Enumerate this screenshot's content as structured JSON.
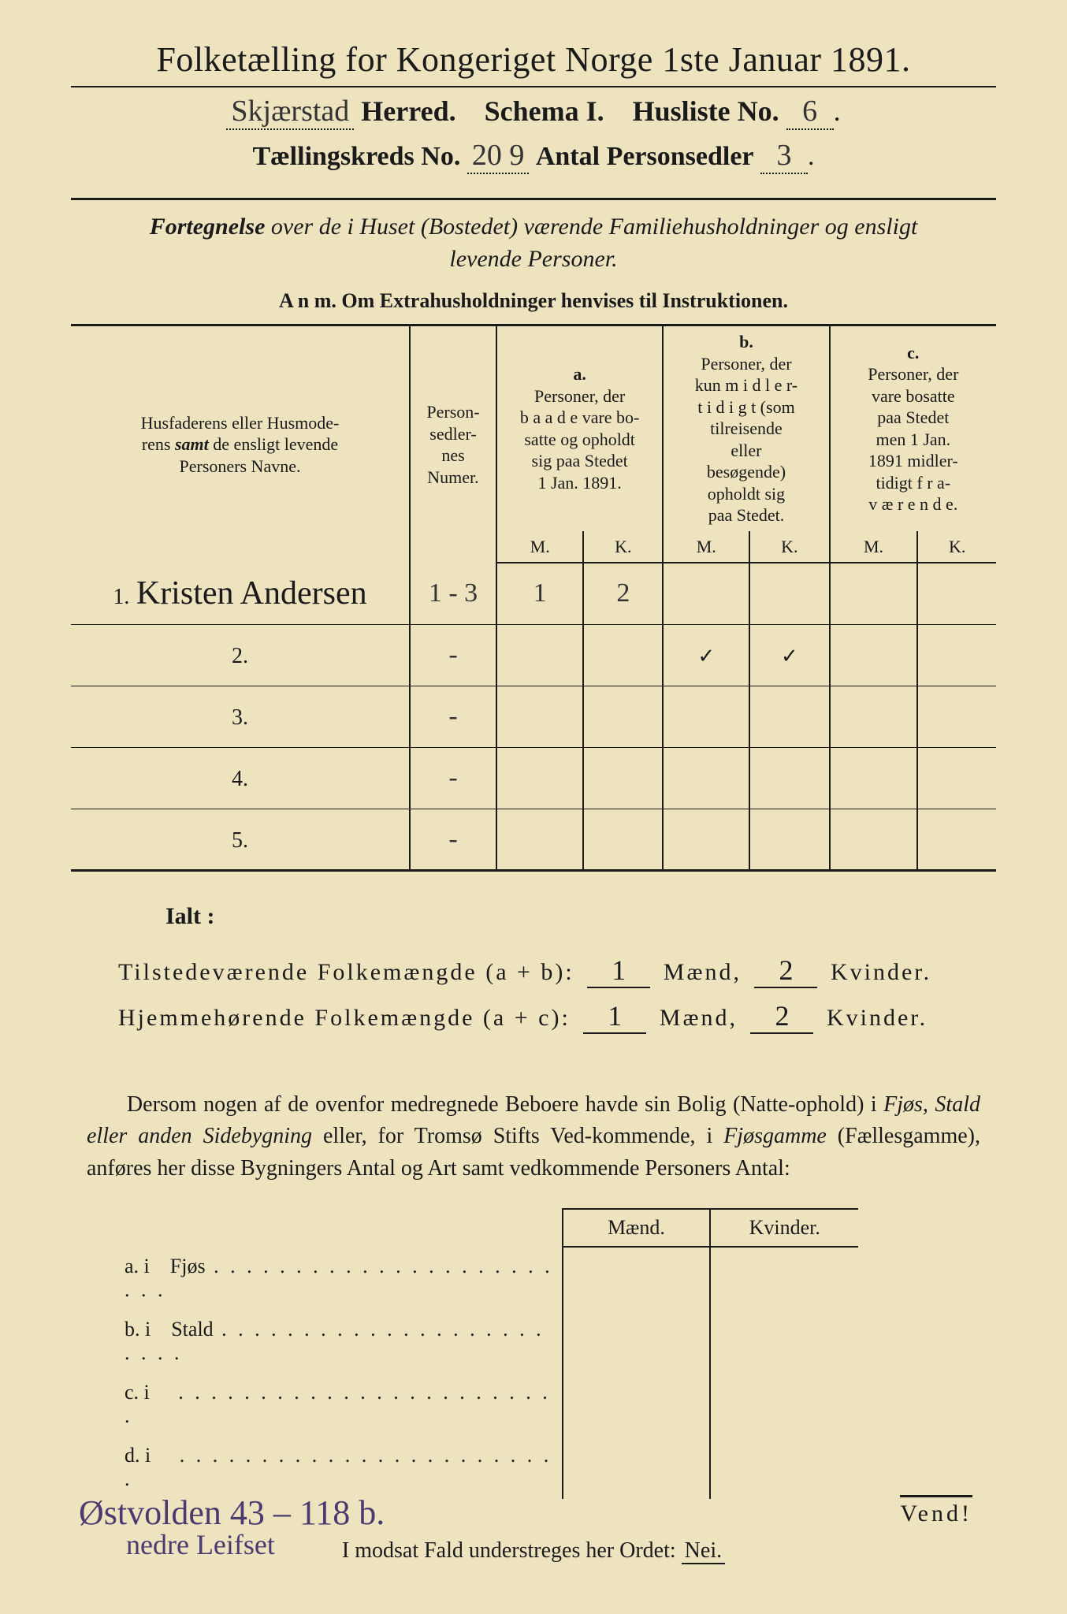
{
  "header": {
    "title": "Folketælling for Kongeriget Norge 1ste Januar 1891.",
    "herred_value": "Skjærstad",
    "herred_label": "Herred.",
    "schema_label": "Schema I.",
    "husliste_label": "Husliste No.",
    "husliste_value": "6",
    "kreds_label": "Tællingskreds No.",
    "kreds_value": "20 9",
    "antal_label": "Antal Personsedler",
    "antal_value": "3"
  },
  "subheader": {
    "line": "Fortegnelse over de i Huset (Bostedet) værende Familiehusholdninger og ensligt levende Personer.",
    "anm": "A n m.   Om Extrahusholdninger henvises til Instruktionen."
  },
  "table": {
    "col_names": "Husfaderens eller Husmoderens samt de ensligt levende Personers Navne.",
    "col_numer": "Person-sedler-nes Numer.",
    "col_a_head": "a.",
    "col_a": "Personer, der b a a d e vare bo-satte og opholdt sig paa Stedet 1 Jan. 1891.",
    "col_b_head": "b.",
    "col_b": "Personer, der kun m i d l e r-t i d i g t (som tilreisende eller besøgende) opholdt sig paa Stedet.",
    "col_c_head": "c.",
    "col_c": "Personer, der vare bosatte paa Stedet men 1 Jan. 1891 midler-tidigt f r a-v æ r e n d e.",
    "mk_m": "M.",
    "mk_k": "K.",
    "rows": [
      {
        "num": "1.",
        "name": "Kristen Andersen",
        "numer": "1 - 3",
        "a_m": "1",
        "a_k": "2",
        "b_m": "",
        "b_k": "",
        "c_m": "",
        "c_k": ""
      },
      {
        "num": "2.",
        "name": "",
        "numer": "-",
        "a_m": "",
        "a_k": "",
        "b_m": "✓",
        "b_k": "✓",
        "c_m": "",
        "c_k": ""
      },
      {
        "num": "3.",
        "name": "",
        "numer": "-",
        "a_m": "",
        "a_k": "",
        "b_m": "",
        "b_k": "",
        "c_m": "",
        "c_k": ""
      },
      {
        "num": "4.",
        "name": "",
        "numer": "-",
        "a_m": "",
        "a_k": "",
        "b_m": "",
        "b_k": "",
        "c_m": "",
        "c_k": ""
      },
      {
        "num": "5.",
        "name": "",
        "numer": "-",
        "a_m": "",
        "a_k": "",
        "b_m": "",
        "b_k": "",
        "c_m": "",
        "c_k": ""
      }
    ]
  },
  "totals": {
    "ialt": "Ialt :",
    "tilstede_label": "Tilstedeværende Folkemængde (a + b):",
    "tilstede_m": "1",
    "tilstede_k": "2",
    "hjemme_label": "Hjemmehørende Folkemængde (a + c):",
    "hjemme_m": "1",
    "hjemme_k": "2",
    "maend": "Mænd,",
    "kvinder": "Kvinder."
  },
  "para": "Dersom nogen af de ovenfor medregnede Beboere havde sin Bolig (Natte-ophold) i Fjøs, Stald eller anden Sidebygning eller, for Tromsø Stifts Ved-kommende, i Fjøsgamme (Fællesgamme), anføres her disse Bygningers Antal og Art samt vedkommende Personers Antal:",
  "fjøs": {
    "maend": "Mænd.",
    "kvinder": "Kvinder.",
    "rows": [
      {
        "k": "a.  i",
        "label": "Fjøs"
      },
      {
        "k": "b.  i",
        "label": "Stald"
      },
      {
        "k": "c.  i",
        "label": ""
      },
      {
        "k": "d.  i",
        "label": ""
      }
    ]
  },
  "nei_line": "I modsat Fald understreges her Ordet:",
  "nei": "Nei.",
  "footnote": {
    "line1": "Østvolden   43 – 118 b.",
    "line2": "nedre Leifset"
  },
  "vend": "Vend!",
  "colors": {
    "paper": "#ede4bf",
    "ink": "#1a1a1a",
    "handwriting": "#4a3a6f"
  }
}
